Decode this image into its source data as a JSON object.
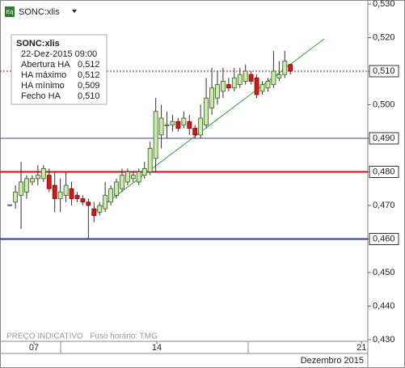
{
  "chart_data": {
    "type": "candlestick",
    "title": "SONC:xlis",
    "footer": "PREÇO INDICATIVO   Fuso horário: TMG",
    "period_label": "Dezembro 2015",
    "tooltip": {
      "title": "SONC:xlis",
      "date": "22-Dez-2015 09:00",
      "rows": [
        [
          "Abertura HA",
          "0,512"
        ],
        [
          "HA máximo",
          "0,512"
        ],
        [
          "HA mínimo",
          "0,509"
        ],
        [
          "Fecho HA",
          "0,510"
        ]
      ]
    },
    "x": [
      0,
      1,
      2,
      3,
      4,
      5,
      6,
      7,
      8,
      9,
      10,
      11,
      12,
      13,
      14,
      15,
      16,
      17,
      18,
      19,
      20,
      21,
      22,
      23,
      24,
      25,
      26,
      27,
      28,
      29,
      30,
      31,
      32,
      33,
      34,
      35,
      36,
      37,
      38,
      39,
      40,
      41,
      42,
      43,
      44,
      45,
      46,
      47,
      48,
      49,
      50
    ],
    "open": [
      0.47,
      0.471,
      0.473,
      0.474,
      0.477,
      0.478,
      0.478,
      0.479,
      0.476,
      0.472,
      0.473,
      0.475,
      0.473,
      0.472,
      0.471,
      0.469,
      0.468,
      0.469,
      0.471,
      0.473,
      0.475,
      0.477,
      0.478,
      0.477,
      0.479,
      0.48,
      0.484,
      0.491,
      0.494,
      0.494,
      0.495,
      0.494,
      0.495,
      0.493,
      0.491,
      0.494,
      0.499,
      0.502,
      0.504,
      0.506,
      0.505,
      0.506,
      0.507,
      0.509,
      0.508,
      0.504,
      0.505,
      0.506,
      0.508,
      0.509,
      0.512
    ],
    "high": [
      0.4702,
      0.476,
      0.483,
      0.479,
      0.479,
      0.482,
      0.482,
      0.481,
      0.48,
      0.478,
      0.48,
      0.477,
      0.474,
      0.473,
      0.472,
      0.471,
      0.471,
      0.477,
      0.476,
      0.478,
      0.481,
      0.481,
      0.48,
      0.481,
      0.483,
      0.489,
      0.502,
      0.5,
      0.498,
      0.497,
      0.496,
      0.498,
      0.497,
      0.494,
      0.5,
      0.508,
      0.511,
      0.51,
      0.511,
      0.508,
      0.511,
      0.511,
      0.512,
      0.51,
      0.509,
      0.507,
      0.508,
      0.516,
      0.513,
      0.516,
      0.512
    ],
    "low": [
      0.4698,
      0.469,
      0.463,
      0.472,
      0.476,
      0.476,
      0.477,
      0.474,
      0.468,
      0.468,
      0.471,
      0.47,
      0.471,
      0.47,
      0.46,
      0.465,
      0.467,
      0.468,
      0.47,
      0.472,
      0.474,
      0.476,
      0.477,
      0.476,
      0.478,
      0.479,
      0.48,
      0.487,
      0.49,
      0.492,
      0.492,
      0.493,
      0.491,
      0.49,
      0.49,
      0.493,
      0.497,
      0.5,
      0.502,
      0.504,
      0.504,
      0.505,
      0.506,
      0.506,
      0.502,
      0.503,
      0.504,
      0.505,
      0.507,
      0.508,
      0.509
    ],
    "close": [
      0.4702,
      0.474,
      0.477,
      0.478,
      0.478,
      0.479,
      0.481,
      0.475,
      0.472,
      0.474,
      0.476,
      0.472,
      0.472,
      0.471,
      0.47,
      0.467,
      0.47,
      0.473,
      0.475,
      0.477,
      0.479,
      0.48,
      0.479,
      0.48,
      0.481,
      0.487,
      0.498,
      0.496,
      0.494,
      0.495,
      0.493,
      0.496,
      0.493,
      0.491,
      0.496,
      0.502,
      0.505,
      0.506,
      0.507,
      0.505,
      0.508,
      0.509,
      0.51,
      0.507,
      0.503,
      0.506,
      0.507,
      0.51,
      0.509,
      0.513,
      0.51
    ],
    "up_color": "#cde9ad",
    "down_color": "#d21a1a",
    "xlim": [
      -0.6,
      63.8
    ],
    "xticks": [
      {
        "value": 4.3,
        "label": "07"
      },
      {
        "value": 26.2,
        "label": "14"
      },
      {
        "value": 62.7,
        "label": "21"
      }
    ],
    "ylim": [
      0.4288,
      0.5312
    ],
    "yticks": [
      {
        "value": 0.53,
        "label": "0,530"
      },
      {
        "value": 0.52,
        "label": "0,520"
      },
      {
        "value": 0.51,
        "label": "0,510"
      },
      {
        "value": 0.5,
        "label": "0,500"
      },
      {
        "value": 0.49,
        "label": "0,490"
      },
      {
        "value": 0.48,
        "label": "0,480"
      },
      {
        "value": 0.47,
        "label": "0,470"
      },
      {
        "value": 0.46,
        "label": "0,460"
      },
      {
        "value": 0.45,
        "label": "0,450"
      },
      {
        "value": 0.44,
        "label": "0,440"
      },
      {
        "value": 0.43,
        "label": "0,430"
      }
    ],
    "levels": [
      {
        "value": 0.49,
        "label": "0,490",
        "color": "#3a4a9a",
        "width": 1,
        "dashed": false
      },
      {
        "value": 0.48,
        "label": "0,480",
        "color": "#cc1111",
        "width": 2,
        "dashed": false
      },
      {
        "value": 0.46,
        "label": "0,460",
        "color": "#2a3a9a",
        "width": 2,
        "dashed": false
      },
      {
        "value": 0.51,
        "label": "0,510",
        "color": "#cc1111",
        "width": 1,
        "dashed": true
      }
    ],
    "trendline": {
      "x": [
        14.5,
        56.0
      ],
      "y": [
        0.4673,
        0.5196
      ],
      "color": "#2ea82e"
    }
  }
}
